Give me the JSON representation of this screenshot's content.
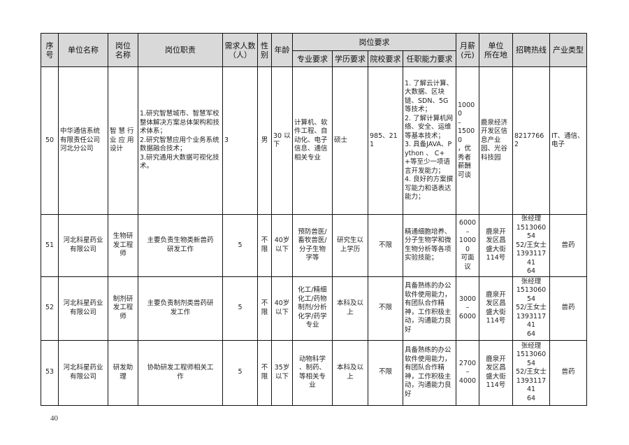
{
  "headers": {
    "seq": "序号",
    "unit_name": "单位名称",
    "position_name": "岗位\n名称",
    "duties": "岗位职责",
    "headcount": "需求人数\n（人）",
    "gender": "性\n别",
    "age": "年龄",
    "requirements": "岗位要求",
    "major": "专业要求",
    "education": "学历要求",
    "school": "院校要求",
    "ability": "任职能力要求",
    "salary": "月薪\n(元)",
    "location": "单位\n所在地",
    "hotline": "招聘热线",
    "industry": "产业类型"
  },
  "rows": [
    {
      "seq": "50",
      "unit_name": "中华通信系统有限责任公司河北分公司",
      "position_name": "智 慧 行业 应 用设计",
      "duties": "1.研究智慧城市、智慧军校整体解决方案总体架构和技术体系；\n2.研究智慧应用个业务系统数据融合技术；\n3.研究通用大数据可视化技术。",
      "headcount": "3",
      "gender": "男",
      "age": "30 以下",
      "major": "计算机、软件工程、自动化、电子信息、通信相关专业",
      "education": "硕士",
      "school": "985、211",
      "ability": "1. 了解云计算、大数据、区块链、SDN、5G等技术；\n2. 了解计算机网络、安全、运维等基本技术；\n3. 具备JAVA、Python 、 C++等至少一项语言开发能力；\n4. 良好的方案撰写能力和语表达能力；",
      "salary": "10000\n–\n15000\n，优秀者薪酬可谈",
      "location": "鹿泉经济开发区信息产业园、光谷科技园",
      "hotline": "82177662",
      "industry": "IT、通信、电子"
    },
    {
      "seq": "51",
      "unit_name": "河北科星药业\n有限公司",
      "position_name": "生物研\n发工程\n师",
      "duties": "主要负责生物类新兽药\n研发工作",
      "headcount": "5",
      "gender": "不限",
      "age": "40岁\n以下",
      "major": "预防兽医/\n畜牧兽医/\n分子生物\n学等",
      "education": "研究生以\n上学历",
      "school": "不限",
      "ability": "精通细胞培养、分子生物学和微生物分析等各项实验技能；",
      "salary": "6000–\n10000\n可面\n议",
      "location": "鹿泉开\n发区昌\n盛大街\n114号",
      "hotline": "张经理\n151306054\n52/王女士\n139311741\n64",
      "industry": "兽药"
    },
    {
      "seq": "52",
      "unit_name": "河北科星药业\n有限公司",
      "position_name": "制剂研\n发工程\n师",
      "duties": "主要负责制剂类兽药研\n发工作",
      "headcount": "5",
      "gender": "不限",
      "age": "40岁\n以下",
      "major": "化工/精细\n化工/药物\n制剂/分析\n化学/药学\n专业",
      "education": "本科及以\n上",
      "school": "不限",
      "ability": "具备熟练的办公软件使用能力，有团队合作精神，工作积极主动，沟通能力良好",
      "salary": "3000–\n6000",
      "location": "鹿泉开\n发区昌\n盛大街\n114号",
      "hotline": "张经理\n151306054\n52/王女士\n139311741\n64",
      "industry": "兽药"
    },
    {
      "seq": "53",
      "unit_name": "河北科星药业\n有限公司",
      "position_name": "研发助\n理",
      "duties": "协助研发工程师相关工\n作",
      "headcount": "5",
      "gender": "不限",
      "age": "35岁\n以下",
      "major": "动物科学\n、制药、\n等相关专\n业",
      "education": "本科及以\n上",
      "school": "不限",
      "ability": "具备熟练的办公软件使用能力，有团队合作精神，工作积极主动，沟通能力良好",
      "salary": "2700–\n4000",
      "location": "鹿泉开\n发区昌\n盛大街\n114号",
      "hotline": "张经理\n151306054\n52/王女士\n139311741\n64",
      "industry": "兽药"
    }
  ],
  "page_number": "40"
}
